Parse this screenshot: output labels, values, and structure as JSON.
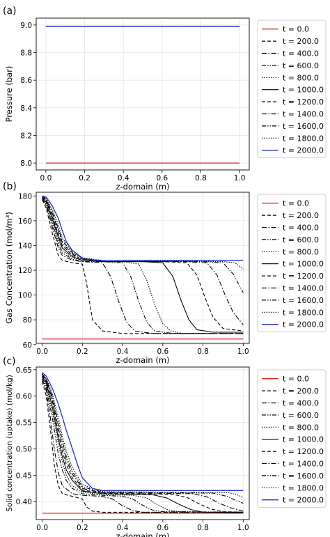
{
  "legend_entries": [
    {
      "label": "t = 0.0",
      "color": "#e8221c",
      "dash": "solid"
    },
    {
      "label": "t = 200.0",
      "color": "#000000",
      "dash": "dashed"
    },
    {
      "label": "t = 400.0",
      "color": "#000000",
      "dash": "dashdot"
    },
    {
      "label": "t = 600.0",
      "color": "#000000",
      "dash": "dashdotdot"
    },
    {
      "label": "t = 800.0",
      "color": "#000000",
      "dash": "dotted"
    },
    {
      "label": "t = 1000.0",
      "color": "#000000",
      "dash": "solid"
    },
    {
      "label": "t = 1200.0",
      "color": "#000000",
      "dash": "dashed"
    },
    {
      "label": "t = 1400.0",
      "color": "#000000",
      "dash": "dashdot"
    },
    {
      "label": "t = 1600.0",
      "color": "#000000",
      "dash": "dashdotdot"
    },
    {
      "label": "t = 1800.0",
      "color": "#000000",
      "dash": "dotted"
    },
    {
      "label": "t = 2000.0",
      "color": "#1f2fbf",
      "dash": "solid"
    }
  ],
  "chart_data": [
    {
      "panel_label": "(a)",
      "type": "line",
      "xlabel": "z-domain (m)",
      "ylabel": "Pressure (bar)",
      "xlim": [
        -0.05,
        1.05
      ],
      "ylim": [
        7.95,
        9.05
      ],
      "xticks": [
        0.0,
        0.2,
        0.4,
        0.6,
        0.8,
        1.0
      ],
      "xtick_labels": [
        "0.0",
        "0.2",
        "0.4",
        "0.6",
        "0.8",
        "1.0"
      ],
      "yticks": [
        8.0,
        8.2,
        8.4,
        8.6,
        8.8,
        9.0
      ],
      "ytick_labels": [
        "8.0",
        "8.2",
        "8.4",
        "8.6",
        "8.8",
        "9.0"
      ],
      "grid": true,
      "legend_position": "outside-right",
      "series": [
        {
          "name": "t = 0.0",
          "x": [
            0,
            1
          ],
          "y": [
            8.0,
            8.0
          ]
        },
        {
          "name": "t = 200.0",
          "x": [
            0,
            1
          ],
          "y": [
            8.99,
            8.99
          ]
        },
        {
          "name": "t = 400.0",
          "x": [
            0,
            1
          ],
          "y": [
            8.99,
            8.99
          ]
        },
        {
          "name": "t = 600.0",
          "x": [
            0,
            1
          ],
          "y": [
            8.99,
            8.99
          ]
        },
        {
          "name": "t = 800.0",
          "x": [
            0,
            1
          ],
          "y": [
            8.99,
            8.99
          ]
        },
        {
          "name": "t = 1000.0",
          "x": [
            0,
            1
          ],
          "y": [
            8.99,
            8.99
          ]
        },
        {
          "name": "t = 1200.0",
          "x": [
            0,
            1
          ],
          "y": [
            8.99,
            8.99
          ]
        },
        {
          "name": "t = 1400.0",
          "x": [
            0,
            1
          ],
          "y": [
            8.99,
            8.99
          ]
        },
        {
          "name": "t = 1600.0",
          "x": [
            0,
            1
          ],
          "y": [
            8.99,
            8.99
          ]
        },
        {
          "name": "t = 1800.0",
          "x": [
            0,
            1
          ],
          "y": [
            8.99,
            8.99
          ]
        },
        {
          "name": "t = 2000.0",
          "x": [
            0,
            1
          ],
          "y": [
            8.99,
            8.99
          ]
        }
      ]
    },
    {
      "panel_label": "(b)",
      "type": "line",
      "xlabel": "z-domain (m)",
      "ylabel": "Gas Concentration (mol/m³)",
      "xlim": [
        -0.03,
        1.03
      ],
      "ylim": [
        61,
        183
      ],
      "xticks": [
        0.0,
        0.2,
        0.4,
        0.6,
        0.8,
        1.0
      ],
      "xtick_labels": [
        "0.0",
        "0.2",
        "0.4",
        "0.6",
        "0.8",
        "1.0"
      ],
      "yticks": [
        60,
        80,
        100,
        120,
        140,
        160,
        180
      ],
      "ytick_labels": [
        "60",
        "80",
        "100",
        "120",
        "140",
        "160",
        "180"
      ],
      "grid": true,
      "legend_position": "outside-right",
      "series": [
        {
          "name": "t = 0.0",
          "x": [
            0,
            1
          ],
          "y": [
            64.5,
            64.5
          ]
        },
        {
          "name": "t = 200.0",
          "x": [
            0,
            0.02,
            0.05,
            0.08,
            0.1,
            0.15,
            0.2,
            0.22,
            0.25,
            0.3,
            0.4,
            0.5,
            1.0
          ],
          "y": [
            177,
            170,
            150,
            132,
            128,
            126,
            125,
            110,
            80,
            71,
            69,
            69,
            69
          ]
        },
        {
          "name": "t = 400.0",
          "x": [
            0,
            0.02,
            0.05,
            0.08,
            0.1,
            0.15,
            0.2,
            0.3,
            0.34,
            0.38,
            0.42,
            0.46,
            0.55,
            1.0
          ],
          "y": [
            178,
            172,
            155,
            138,
            132,
            128,
            127,
            126,
            115,
            95,
            78,
            71,
            69,
            69
          ]
        },
        {
          "name": "t = 600.0",
          "x": [
            0,
            0.02,
            0.05,
            0.08,
            0.1,
            0.15,
            0.2,
            0.3,
            0.4,
            0.44,
            0.48,
            0.52,
            0.56,
            0.65,
            1.0
          ],
          "y": [
            178,
            173,
            158,
            141,
            134,
            129,
            127,
            127,
            126,
            115,
            95,
            78,
            71,
            69,
            69
          ]
        },
        {
          "name": "t = 800.0",
          "x": [
            0,
            0.02,
            0.05,
            0.08,
            0.1,
            0.15,
            0.2,
            0.3,
            0.4,
            0.48,
            0.52,
            0.56,
            0.6,
            0.64,
            0.7,
            1.0
          ],
          "y": [
            179,
            174,
            160,
            144,
            136,
            130,
            128,
            127,
            127,
            125,
            112,
            92,
            77,
            71,
            69,
            69
          ]
        },
        {
          "name": "t = 1000.0",
          "x": [
            0,
            0.02,
            0.05,
            0.08,
            0.1,
            0.15,
            0.2,
            0.3,
            0.5,
            0.6,
            0.65,
            0.69,
            0.73,
            0.77,
            0.85,
            1.0
          ],
          "y": [
            179,
            175,
            162,
            147,
            138,
            131,
            128,
            127,
            127,
            126,
            115,
            96,
            80,
            72,
            70,
            70
          ]
        },
        {
          "name": "t = 1200.0",
          "x": [
            0,
            0.02,
            0.05,
            0.08,
            0.1,
            0.15,
            0.2,
            0.3,
            0.6,
            0.72,
            0.77,
            0.81,
            0.85,
            0.9,
            1.0
          ],
          "y": [
            179,
            176,
            164,
            149,
            140,
            132,
            129,
            127,
            127,
            126,
            116,
            98,
            82,
            73,
            71
          ]
        },
        {
          "name": "t = 1400.0",
          "x": [
            0,
            0.02,
            0.05,
            0.08,
            0.1,
            0.15,
            0.2,
            0.3,
            0.7,
            0.82,
            0.87,
            0.91,
            0.95,
            1.0
          ],
          "y": [
            180,
            177,
            166,
            152,
            142,
            133,
            129,
            127,
            127,
            126,
            116,
            100,
            86,
            76
          ]
        },
        {
          "name": "t = 1600.0",
          "x": [
            0,
            0.02,
            0.05,
            0.08,
            0.1,
            0.15,
            0.2,
            0.3,
            0.8,
            0.9,
            0.95,
            1.0
          ],
          "y": [
            180,
            177,
            167,
            154,
            144,
            134,
            130,
            127,
            127,
            126,
            117,
            102
          ]
        },
        {
          "name": "t = 1800.0",
          "x": [
            0,
            0.02,
            0.05,
            0.08,
            0.1,
            0.15,
            0.2,
            0.3,
            0.9,
            0.96,
            1.0
          ],
          "y": [
            180,
            178,
            169,
            157,
            146,
            135,
            130,
            128,
            127,
            126,
            121
          ]
        },
        {
          "name": "t = 2000.0",
          "x": [
            0,
            0.02,
            0.05,
            0.08,
            0.1,
            0.12,
            0.15,
            0.2,
            0.25,
            0.3,
            1.0
          ],
          "y": [
            180,
            179,
            172,
            162,
            152,
            143,
            136,
            130,
            128,
            128,
            128
          ]
        }
      ]
    },
    {
      "panel_label": "(c)",
      "type": "line",
      "xlabel": "z-domain (m)",
      "ylabel": "Solid concentration (uptake) (mol/kg)",
      "xlim": [
        -0.03,
        1.03
      ],
      "ylim": [
        0.366,
        0.655
      ],
      "xticks": [
        0.0,
        0.2,
        0.4,
        0.6,
        0.8,
        1.0
      ],
      "xtick_labels": [
        "0.0",
        "0.2",
        "0.4",
        "0.6",
        "0.8",
        "1.0"
      ],
      "yticks": [
        0.4,
        0.45,
        0.5,
        0.55,
        0.6,
        0.65
      ],
      "ytick_labels": [
        "0.40",
        "0.45",
        "0.50",
        "0.55",
        "0.60",
        "0.65"
      ],
      "grid": true,
      "legend_position": "outside-right",
      "series": [
        {
          "name": "t = 0.0",
          "x": [
            0,
            1
          ],
          "y": [
            0.378,
            0.378
          ]
        },
        {
          "name": "t = 200.0",
          "x": [
            0,
            0.02,
            0.04,
            0.06,
            0.08,
            0.1,
            0.15,
            0.2,
            0.22,
            0.25,
            0.3,
            0.4,
            1.0
          ],
          "y": [
            0.628,
            0.6,
            0.54,
            0.47,
            0.43,
            0.415,
            0.41,
            0.405,
            0.39,
            0.382,
            0.38,
            0.38,
            0.38
          ]
        },
        {
          "name": "t = 400.0",
          "x": [
            0,
            0.02,
            0.04,
            0.06,
            0.08,
            0.1,
            0.15,
            0.2,
            0.3,
            0.35,
            0.4,
            0.45,
            0.5,
            1.0
          ],
          "y": [
            0.632,
            0.61,
            0.56,
            0.5,
            0.455,
            0.43,
            0.415,
            0.412,
            0.41,
            0.405,
            0.392,
            0.383,
            0.38,
            0.38
          ]
        },
        {
          "name": "t = 600.0",
          "x": [
            0,
            0.02,
            0.05,
            0.08,
            0.1,
            0.12,
            0.15,
            0.2,
            0.3,
            0.4,
            0.45,
            0.5,
            0.55,
            0.6,
            1.0
          ],
          "y": [
            0.635,
            0.615,
            0.56,
            0.49,
            0.46,
            0.44,
            0.425,
            0.415,
            0.412,
            0.41,
            0.405,
            0.393,
            0.384,
            0.381,
            0.38
          ]
        },
        {
          "name": "t = 800.0",
          "x": [
            0,
            0.02,
            0.05,
            0.08,
            0.1,
            0.12,
            0.15,
            0.2,
            0.3,
            0.45,
            0.52,
            0.57,
            0.62,
            0.68,
            1.0
          ],
          "y": [
            0.637,
            0.62,
            0.57,
            0.51,
            0.475,
            0.45,
            0.43,
            0.418,
            0.413,
            0.412,
            0.407,
            0.395,
            0.385,
            0.381,
            0.38
          ]
        },
        {
          "name": "t = 1000.0",
          "x": [
            0,
            0.02,
            0.05,
            0.08,
            0.1,
            0.12,
            0.15,
            0.2,
            0.3,
            0.55,
            0.62,
            0.68,
            0.74,
            0.8,
            1.0
          ],
          "y": [
            0.638,
            0.625,
            0.58,
            0.52,
            0.485,
            0.46,
            0.44,
            0.42,
            0.415,
            0.413,
            0.407,
            0.395,
            0.385,
            0.38,
            0.379
          ]
        },
        {
          "name": "t = 1200.0",
          "x": [
            0,
            0.02,
            0.05,
            0.08,
            0.1,
            0.12,
            0.15,
            0.2,
            0.3,
            0.65,
            0.72,
            0.78,
            0.84,
            0.9,
            1.0
          ],
          "y": [
            0.64,
            0.628,
            0.59,
            0.53,
            0.495,
            0.47,
            0.445,
            0.422,
            0.416,
            0.414,
            0.408,
            0.396,
            0.386,
            0.381,
            0.38
          ]
        },
        {
          "name": "t = 1400.0",
          "x": [
            0,
            0.02,
            0.05,
            0.08,
            0.1,
            0.12,
            0.15,
            0.2,
            0.3,
            0.75,
            0.82,
            0.88,
            0.94,
            1.0
          ],
          "y": [
            0.641,
            0.63,
            0.595,
            0.54,
            0.505,
            0.478,
            0.452,
            0.425,
            0.417,
            0.415,
            0.409,
            0.397,
            0.388,
            0.382
          ]
        },
        {
          "name": "t = 1600.0",
          "x": [
            0,
            0.02,
            0.05,
            0.08,
            0.1,
            0.12,
            0.15,
            0.2,
            0.3,
            0.85,
            0.92,
            0.97,
            1.0
          ],
          "y": [
            0.642,
            0.632,
            0.6,
            0.55,
            0.515,
            0.485,
            0.457,
            0.428,
            0.418,
            0.416,
            0.41,
            0.401,
            0.397
          ]
        },
        {
          "name": "t = 1800.0",
          "x": [
            0,
            0.02,
            0.05,
            0.08,
            0.1,
            0.12,
            0.15,
            0.2,
            0.3,
            0.93,
            0.97,
            1.0
          ],
          "y": [
            0.643,
            0.634,
            0.605,
            0.56,
            0.525,
            0.495,
            0.465,
            0.432,
            0.419,
            0.417,
            0.413,
            0.408
          ]
        },
        {
          "name": "t = 2000.0",
          "x": [
            0,
            0.02,
            0.05,
            0.08,
            0.1,
            0.12,
            0.15,
            0.18,
            0.2,
            0.25,
            0.3,
            1.0
          ],
          "y": [
            0.645,
            0.638,
            0.615,
            0.585,
            0.56,
            0.535,
            0.5,
            0.465,
            0.445,
            0.425,
            0.421,
            0.421
          ]
        }
      ]
    }
  ]
}
